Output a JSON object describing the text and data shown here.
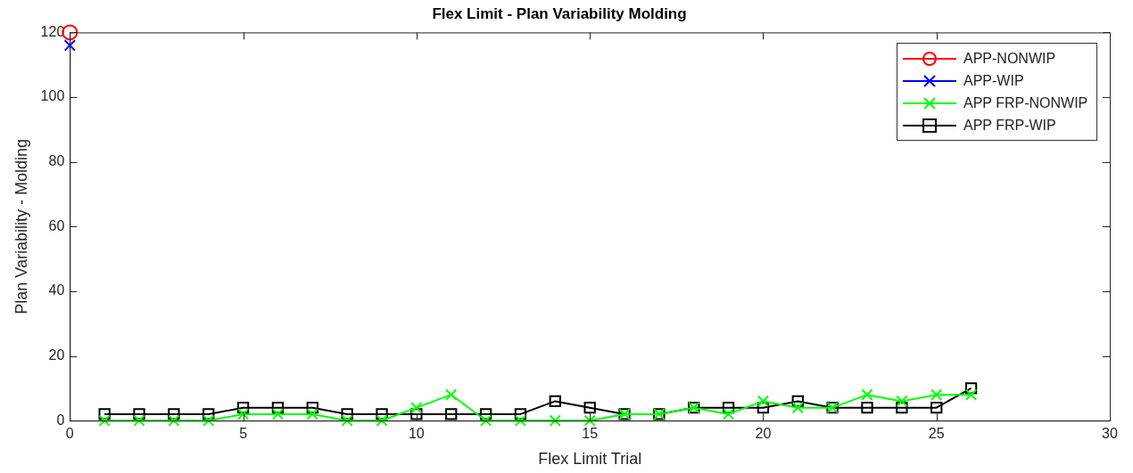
{
  "chart_data": {
    "type": "line",
    "title": "Flex Limit - Plan Variability Molding",
    "xlabel": "Flex Limit Trial",
    "ylabel": "Plan Variability - Molding",
    "xlim": [
      0,
      30
    ],
    "xticks": [
      0,
      5,
      10,
      15,
      20,
      25,
      30
    ],
    "ylim": [
      0,
      120
    ],
    "yticks": [
      0,
      20,
      40,
      60,
      80,
      100,
      120
    ],
    "grid": false,
    "legend": "top right",
    "line_style": "solid",
    "series": [
      {
        "name": "APP-NONWIP",
        "color": "#ff0000",
        "marker": "circle",
        "x": [
          0
        ],
        "values": [
          120
        ]
      },
      {
        "name": "APP-WIP",
        "color": "#0000ff",
        "marker": "cross",
        "x": [
          0
        ],
        "values": [
          116
        ]
      },
      {
        "name": "APP FRP-NONWIP",
        "color": "#00ff00",
        "marker": "cross",
        "x": [
          1,
          2,
          3,
          4,
          5,
          6,
          7,
          8,
          9,
          10,
          11,
          12,
          13,
          14,
          15,
          16,
          17,
          18,
          19,
          20,
          21,
          22,
          23,
          24,
          25,
          26
        ],
        "values": [
          0,
          0,
          0,
          0,
          2,
          2,
          2,
          0,
          0,
          4,
          8,
          0,
          0,
          0,
          0,
          2,
          2,
          4,
          2,
          6,
          4,
          4,
          8,
          6,
          8,
          8
        ]
      },
      {
        "name": "APP FRP-WIP",
        "color": "#000000",
        "marker": "square",
        "x": [
          1,
          2,
          3,
          4,
          5,
          6,
          7,
          8,
          9,
          10,
          11,
          12,
          13,
          14,
          15,
          16,
          17,
          18,
          19,
          20,
          21,
          22,
          23,
          24,
          25,
          26
        ],
        "values": [
          2,
          2,
          2,
          2,
          4,
          4,
          4,
          2,
          2,
          2,
          2,
          2,
          2,
          6,
          4,
          2,
          2,
          4,
          4,
          4,
          6,
          4,
          4,
          4,
          4,
          10
        ]
      }
    ]
  }
}
